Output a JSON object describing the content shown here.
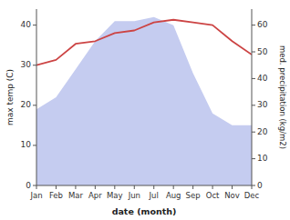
{
  "chart_data": {
    "type": "line",
    "xlabel": "date (month)",
    "ylabel": "max temp (C)",
    "y2label": "med. precipitation (kg/m2)",
    "categories": [
      "Jan",
      "Feb",
      "Mar",
      "Apr",
      "May",
      "Jun",
      "Jul",
      "Aug",
      "Sep",
      "Oct",
      "Nov",
      "Dec"
    ],
    "series": [
      {
        "type": "area",
        "color": "#c5ccf0",
        "values": [
          19,
          22,
          29,
          36,
          41,
          41,
          42,
          40,
          28,
          18,
          15,
          15
        ]
      },
      {
        "type": "line",
        "color": "#cc4444",
        "axis": "y2",
        "values": [
          45,
          47,
          53,
          54,
          57,
          58,
          61,
          62,
          61,
          60,
          54,
          49
        ]
      }
    ],
    "ylim": [
      0,
      44
    ],
    "yticks": [
      0,
      10,
      20,
      30,
      40
    ],
    "y2lim": [
      0,
      66
    ],
    "y2ticks": [
      0,
      10,
      20,
      30,
      40,
      50,
      60
    ]
  }
}
